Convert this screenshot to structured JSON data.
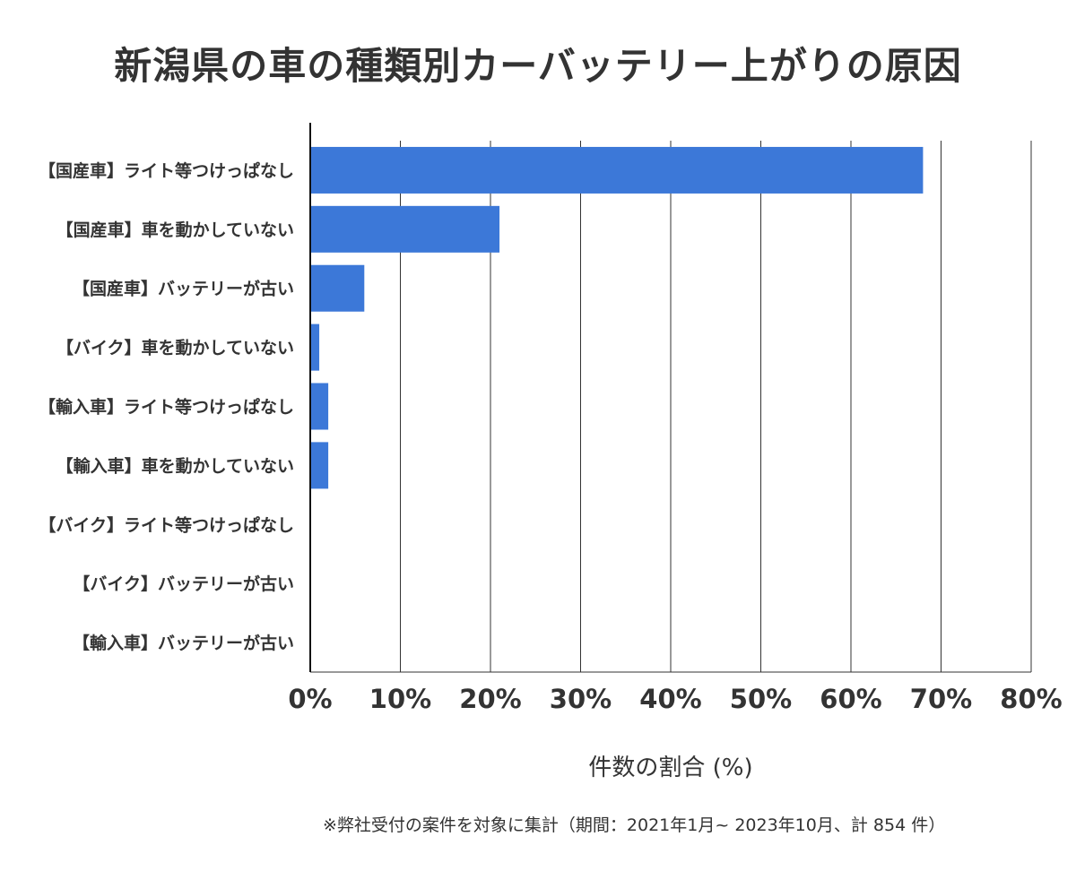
{
  "chart_data": {
    "type": "bar",
    "orientation": "horizontal",
    "title": "新潟県の車の種類別カーバッテリー上がりの原因",
    "categories": [
      "【国産車】ライト等つけっぱなし",
      "【国産車】車を動かしていない",
      "【国産車】バッテリーが古い",
      "【バイク】車を動かしていない",
      "【輸入車】ライト等つけっぱなし",
      "【輸入車】車を動かしていない",
      "【バイク】ライト等つけっぱなし",
      "【バイク】バッテリーが古い",
      "【輸入車】バッテリーが古い"
    ],
    "values": [
      68,
      21,
      6,
      1,
      2,
      2,
      0,
      0,
      0
    ],
    "xlabel": "件数の割合 (%)",
    "ylabel": "",
    "xlim": [
      0,
      80
    ],
    "xticks": [
      "0%",
      "10%",
      "20%",
      "30%",
      "40%",
      "50%",
      "60%",
      "70%",
      "80%"
    ],
    "grid": true,
    "bar_color": "#3c78d8",
    "note": "※弊社受付の案件を対象に集計（期間：2021年1月~ 2023年10月、計 854 件）"
  }
}
